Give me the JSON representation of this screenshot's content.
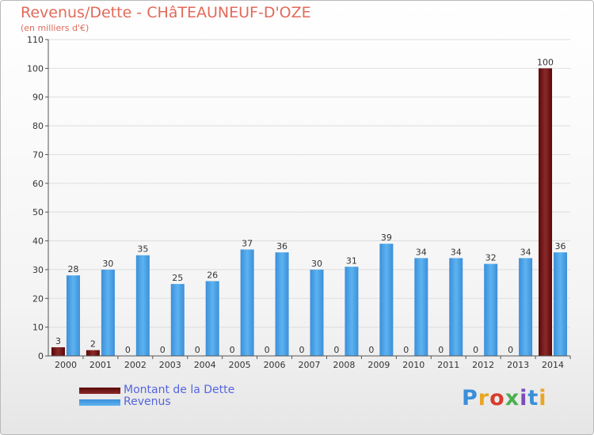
{
  "header": {
    "title": "Revenus/Dette - CHâTEAUNEUF-D'OZE",
    "subtitle": "(en milliers d'€)"
  },
  "legend": {
    "items": [
      {
        "label": "Montant de la Dette",
        "color": "#7a1212"
      },
      {
        "label": "Revenus",
        "color": "#4aa3e6"
      }
    ]
  },
  "logo": {
    "text": "Proxiti",
    "colors": [
      "#3b8fd9",
      "#e8a623",
      "#d93b2b",
      "#4caf50",
      "#7c4dbb"
    ]
  },
  "chart_data": {
    "type": "bar",
    "categories": [
      "2000",
      "2001",
      "2002",
      "2003",
      "2004",
      "2005",
      "2006",
      "2007",
      "2008",
      "2009",
      "2010",
      "2011",
      "2012",
      "2013",
      "2014"
    ],
    "series": [
      {
        "name": "Montant de la Dette",
        "color": "#7a1212",
        "values": [
          3,
          2,
          0,
          0,
          0,
          0,
          0,
          0,
          0,
          0,
          0,
          0,
          0,
          0,
          100
        ]
      },
      {
        "name": "Revenus",
        "color": "#4aa3e6",
        "values": [
          28,
          30,
          35,
          25,
          26,
          37,
          36,
          30,
          31,
          39,
          34,
          34,
          32,
          34,
          36
        ]
      }
    ],
    "title": "Revenus/Dette - CHâTEAUNEUF-D'OZE",
    "ylabel": "(en milliers d'€)",
    "ylim": [
      0,
      110
    ],
    "yticks": [
      0,
      10,
      20,
      30,
      40,
      50,
      60,
      70,
      80,
      90,
      100,
      110
    ],
    "grid": true,
    "legend_position": "bottom-left"
  }
}
